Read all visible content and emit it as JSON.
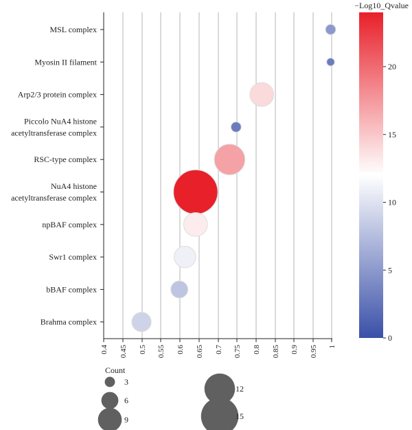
{
  "chart_data": {
    "type": "scatter",
    "title": "",
    "xlabel": "",
    "ylabel": "",
    "xlim": [
      0.4,
      1.0
    ],
    "x_ticks": [
      "0.4",
      "0.45",
      "0.5",
      "0.55",
      "0.6",
      "0.65",
      "0.7",
      "0.75",
      "0.8",
      "0.85",
      "0.9",
      "0.95",
      "1"
    ],
    "grid": "vertical",
    "categories": [
      "MSL complex",
      "Myosin II filament",
      "Arp2/3 protein complex",
      "Piccolo NuA4 histone acetyltransferase complex",
      "RSC-type complex",
      "NuA4 histone acetyltransferase complex",
      "npBAF complex",
      "Swr1 complex",
      "bBAF complex",
      "Brahma complex"
    ],
    "category_lines": [
      [
        "MSL complex"
      ],
      [
        "Myosin II filament"
      ],
      [
        "Arp2/3 protein complex"
      ],
      [
        "Piccolo NuA4 histone",
        "acetyltransferase complex"
      ],
      [
        "RSC-type complex"
      ],
      [
        "NuA4 histone",
        "acetyltransferase complex"
      ],
      [
        "npBAF complex"
      ],
      [
        "Swr1 complex"
      ],
      [
        "bBAF complex"
      ],
      [
        "Brahma complex"
      ]
    ],
    "points": [
      {
        "category": "MSL complex",
        "x": 1.0,
        "count": 3,
        "neg_log10_qvalue": 5
      },
      {
        "category": "Myosin II filament",
        "x": 1.0,
        "count": 2,
        "neg_log10_qvalue": 3
      },
      {
        "category": "Arp2/3 protein complex",
        "x": 0.818,
        "count": 9,
        "neg_log10_qvalue": 14
      },
      {
        "category": "Piccolo NuA4 histone acetyltransferase complex",
        "x": 0.75,
        "count": 3,
        "neg_log10_qvalue": 3
      },
      {
        "category": "RSC-type complex",
        "x": 0.733,
        "count": 12,
        "neg_log10_qvalue": 17
      },
      {
        "category": "NuA4 histone acetyltransferase complex",
        "x": 0.643,
        "count": 18,
        "neg_log10_qvalue": 24
      },
      {
        "category": "npBAF complex",
        "x": 0.643,
        "count": 9,
        "neg_log10_qvalue": 13
      },
      {
        "category": "Swr1 complex",
        "x": 0.615,
        "count": 8,
        "neg_log10_qvalue": 11
      },
      {
        "category": "bBAF complex",
        "x": 0.6,
        "count": 6,
        "neg_log10_qvalue": 8
      },
      {
        "category": "Brahma complex",
        "x": 0.5,
        "count": 7,
        "neg_log10_qvalue": 9
      }
    ],
    "colorbar": {
      "title": "−Log10_Qvalue",
      "min": 0,
      "max": 24,
      "ticks": [
        0,
        5,
        10,
        15,
        20
      ],
      "low_color": "#3a50a8",
      "mid_color": "#ffffff",
      "high_color": "#e8202a"
    },
    "size_legend": {
      "title": "Count",
      "values": [
        3,
        6,
        9,
        12,
        15
      ]
    },
    "point_stroke": "#dddddd",
    "legend_color": "#606060",
    "grid_color": "#b4b4b4"
  }
}
